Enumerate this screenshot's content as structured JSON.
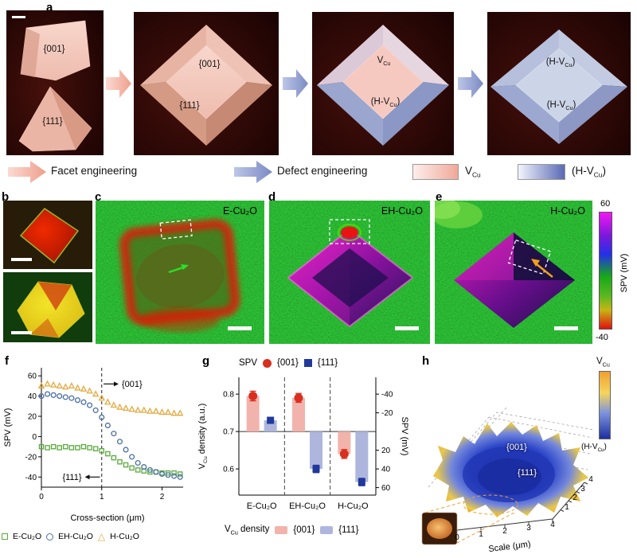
{
  "panel_labels": {
    "a": "a",
    "b": "b",
    "c": "c",
    "d": "d",
    "e": "e",
    "f": "f",
    "g": "g",
    "h": "h"
  },
  "panel_a": {
    "img1_top_facet": "{001}",
    "img1_bottom_facet": "{111}",
    "img2_top_facet": "{001}",
    "img2_side_facet": "{111}",
    "img3_top": "V{sub}Cu{/sub}",
    "img3_side": "(H-V{sub}Cu{/sub})",
    "img4_top": "(H-V{sub}Cu{/sub})",
    "img4_side": "(H-V{sub}Cu{/sub})"
  },
  "legend_row": {
    "facet_engineering": "Facet engineering",
    "defect_engineering": "Defect engineering",
    "vcu": "V{sub}Cu{/sub}",
    "hvcu": "(H-V{sub}Cu{/sub})",
    "pink_accent": "#f0a896",
    "blue_accent": "#7c8ac2"
  },
  "maps": {
    "c_title": "E-Cu₂O",
    "d_title": "EH-Cu₂O",
    "e_title": "H-Cu₂O",
    "colorbar_top": "60",
    "colorbar_bottom": "-40",
    "colorbar_label": "SPV (mV)",
    "colorbar_colors": [
      "#f318f3",
      "#2430e8",
      "#17a817",
      "#e01010"
    ]
  },
  "chart_data": [
    {
      "id": "f",
      "type": "scatter",
      "title": "",
      "xlabel": "Cross-section (μm)",
      "ylabel": "SPV (mV)",
      "xlim": [
        0,
        2.35
      ],
      "ylim": [
        -50,
        68
      ],
      "xticks": [
        0,
        1,
        2
      ],
      "yticks": [
        -40,
        -20,
        0,
        20,
        40,
        60
      ],
      "vline_x": 1,
      "annotations": [
        {
          "text": "{001}",
          "y": 52,
          "arrow_from": 1.03,
          "arrow_to": 1.28
        },
        {
          "text": "{111}",
          "y": -40,
          "arrow_from": 0.97,
          "arrow_to": 0.72
        }
      ],
      "series": [
        {
          "name": "E-Cu₂O",
          "marker": "square",
          "color": "#5aaa3c",
          "x": [
            0,
            0.1,
            0.2,
            0.3,
            0.4,
            0.5,
            0.6,
            0.7,
            0.8,
            0.9,
            1.0,
            1.1,
            1.2,
            1.3,
            1.4,
            1.5,
            1.6,
            1.7,
            1.8,
            1.9,
            2.0,
            2.1,
            2.2,
            2.3
          ],
          "y": [
            -10,
            -11,
            -10,
            -11,
            -10,
            -11,
            -11,
            -10,
            -11,
            -12,
            -14,
            -17,
            -21,
            -25,
            -28,
            -31,
            -33,
            -34,
            -35,
            -35,
            -36,
            -36,
            -36,
            -37
          ]
        },
        {
          "name": "EH-Cu₂O",
          "marker": "circle",
          "color": "#4a6fa8",
          "x": [
            0,
            0.1,
            0.2,
            0.3,
            0.4,
            0.5,
            0.6,
            0.7,
            0.8,
            0.9,
            1.0,
            1.1,
            1.2,
            1.3,
            1.4,
            1.5,
            1.6,
            1.7,
            1.8,
            1.9,
            2.0,
            2.1,
            2.2,
            2.3
          ],
          "y": [
            40,
            42,
            41,
            40,
            39,
            38,
            36,
            34,
            31,
            26,
            19,
            11,
            3,
            -5,
            -13,
            -20,
            -26,
            -30,
            -33,
            -35,
            -37,
            -38,
            -39,
            -40
          ]
        },
        {
          "name": "H-Cu₂O",
          "marker": "triangle",
          "color": "#e6a83e",
          "x": [
            0,
            0.1,
            0.2,
            0.3,
            0.4,
            0.5,
            0.6,
            0.7,
            0.8,
            0.9,
            1.0,
            1.1,
            1.2,
            1.3,
            1.4,
            1.5,
            1.6,
            1.7,
            1.8,
            1.9,
            2.0,
            2.1,
            2.2,
            2.3
          ],
          "y": [
            50,
            52,
            51,
            50,
            49,
            50,
            48,
            47,
            45,
            42,
            38,
            34,
            31,
            29,
            28,
            27,
            26,
            26,
            25,
            25,
            24,
            24,
            23,
            23
          ]
        }
      ]
    },
    {
      "id": "g",
      "type": "bar",
      "categories": [
        "E-Cu₂O",
        "EH-Cu₂O",
        "H-Cu₂O"
      ],
      "ylabel_left": "V{sub}Cu{/sub} density (a.u.)",
      "ylabel_right": "SPV (mV)",
      "ylim_left": [
        0.53,
        0.845
      ],
      "baseline": 0.7,
      "yticks_left": [
        0.6,
        0.7,
        0.8
      ],
      "yticks_right": [
        {
          "density": 0.8,
          "label": "-40"
        },
        {
          "density": 0.75,
          "label": "-20"
        },
        {
          "density": 0.65,
          "label": "20"
        },
        {
          "density": 0.6,
          "label": "40"
        },
        {
          "density": 0.55,
          "label": "60"
        }
      ],
      "legend_top": {
        "title": "SPV",
        "item1": "{001}",
        "item2": "{111}"
      },
      "legend_bottom": {
        "title": "V{sub}Cu{/sub} density",
        "item1": "{001}",
        "item2": "{111}"
      },
      "series": [
        {
          "name": "{001}",
          "bar_color": "#f2b3ac",
          "marker": "circle",
          "marker_color": "#d92f1f",
          "values": [
            0.795,
            0.79,
            0.64
          ],
          "err": [
            0.013,
            0.012,
            0.012
          ],
          "spv_values": [
            -38,
            -36,
            24
          ]
        },
        {
          "name": "{111}",
          "bar_color": "#aeb6dd",
          "marker": "square",
          "marker_color": "#21399b",
          "values": [
            0.73,
            0.6,
            0.565
          ],
          "err": [
            0.008,
            0.01,
            0.01
          ],
          "spv_values": [
            -12,
            40,
            54
          ]
        }
      ]
    },
    {
      "id": "h",
      "type": "heatmap",
      "title": "",
      "colorbar_label_top": "V{sub}Cu{/sub}",
      "colorbar_label_bottom": "(H-V{sub}Cu{/sub})",
      "region_labels": [
        "{001}",
        "{111}"
      ],
      "axis_label": "Scale (μm)",
      "xticks": [
        0,
        1,
        2,
        3,
        4
      ],
      "depth_ticks": [
        1,
        2,
        3,
        4
      ],
      "colormap": [
        "#f0a032",
        "#f6d55e",
        "#7d92dd",
        "#1c2f9e"
      ]
    }
  ]
}
